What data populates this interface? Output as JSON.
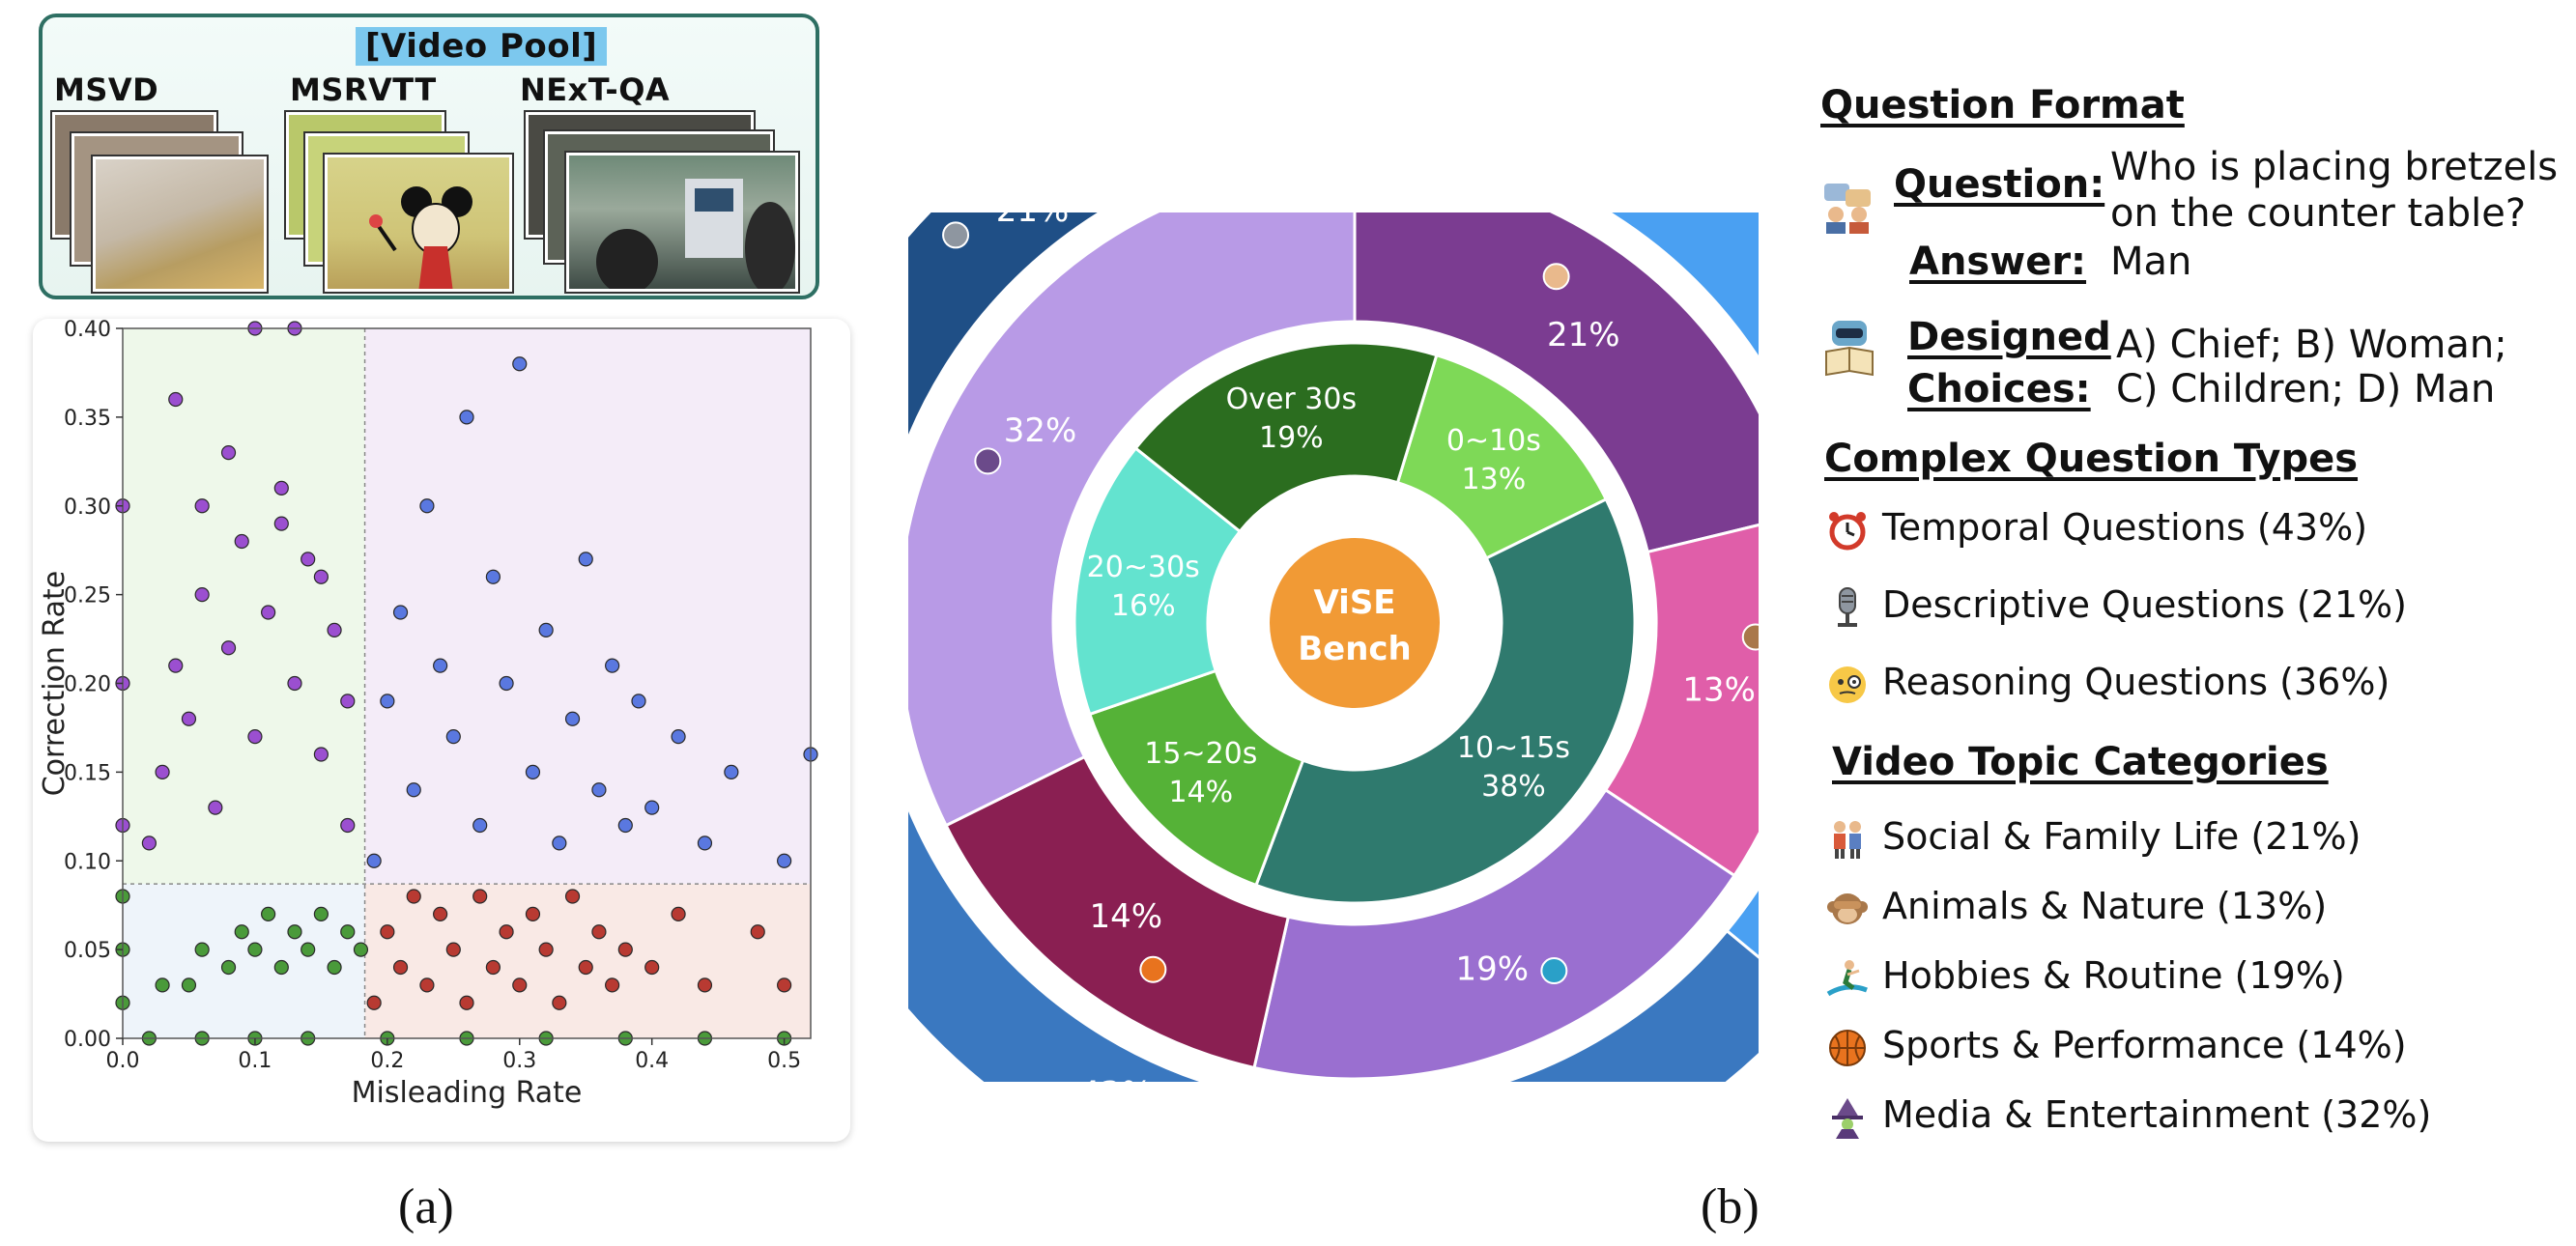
{
  "video_pool": {
    "title": "[Video Pool]",
    "sources": [
      "MSVD",
      "MSRVTT",
      "NExT-QA"
    ]
  },
  "panel_labels": {
    "a": "(a)",
    "b": "(b)"
  },
  "colors": {
    "purple_points": "#9b4fd0",
    "blue_points": "#5a78e0",
    "red_points": "#b83a32",
    "green_points": "#4a9a3a",
    "ring_outer_temporal": "#3a78c0",
    "ring_outer_descriptive": "#1f4f86",
    "ring_outer_reasoning": "#4aa0f2",
    "center": "#f19a35"
  },
  "chart_data": [
    {
      "type": "scatter",
      "xlabel": "Misleading Rate",
      "ylabel": "Correction Rate",
      "xlim": [
        0.0,
        0.52
      ],
      "ylim": [
        0.0,
        0.4
      ],
      "xticks": [
        "0.0",
        "0.1",
        "0.2",
        "0.3",
        "0.4",
        "0.5"
      ],
      "yticks": [
        "0.00",
        "0.05",
        "0.10",
        "0.15",
        "0.20",
        "0.25",
        "0.30",
        "0.35",
        "0.40"
      ],
      "thresholds": {
        "x": 0.183,
        "y": 0.087
      },
      "grid": false,
      "series": [
        {
          "color": "purple",
          "region": "low misleading, high correction",
          "values": [
            [
              0.02,
              0.11
            ],
            [
              0.03,
              0.15
            ],
            [
              0.04,
              0.21
            ],
            [
              0.05,
              0.18
            ],
            [
              0.06,
              0.25
            ],
            [
              0.07,
              0.13
            ],
            [
              0.08,
              0.22
            ],
            [
              0.09,
              0.28
            ],
            [
              0.1,
              0.17
            ],
            [
              0.11,
              0.24
            ],
            [
              0.12,
              0.31
            ],
            [
              0.13,
              0.2
            ],
            [
              0.14,
              0.27
            ],
            [
              0.15,
              0.16
            ],
            [
              0.16,
              0.23
            ],
            [
              0.17,
              0.12
            ],
            [
              0.1,
              0.4
            ],
            [
              0.13,
              0.4
            ],
            [
              0.04,
              0.36
            ],
            [
              0.06,
              0.3
            ],
            [
              0.08,
              0.33
            ],
            [
              0.12,
              0.29
            ],
            [
              0.15,
              0.26
            ],
            [
              0.17,
              0.19
            ],
            [
              0.0,
              0.3
            ],
            [
              0.0,
              0.2
            ],
            [
              0.0,
              0.12
            ]
          ]
        },
        {
          "color": "blue",
          "region": "high misleading, high correction",
          "values": [
            [
              0.19,
              0.1
            ],
            [
              0.2,
              0.19
            ],
            [
              0.21,
              0.24
            ],
            [
              0.22,
              0.14
            ],
            [
              0.23,
              0.3
            ],
            [
              0.24,
              0.21
            ],
            [
              0.25,
              0.17
            ],
            [
              0.26,
              0.35
            ],
            [
              0.27,
              0.12
            ],
            [
              0.28,
              0.26
            ],
            [
              0.29,
              0.2
            ],
            [
              0.3,
              0.38
            ],
            [
              0.31,
              0.15
            ],
            [
              0.32,
              0.23
            ],
            [
              0.33,
              0.11
            ],
            [
              0.34,
              0.18
            ],
            [
              0.35,
              0.27
            ],
            [
              0.36,
              0.14
            ],
            [
              0.37,
              0.21
            ],
            [
              0.38,
              0.12
            ],
            [
              0.39,
              0.19
            ],
            [
              0.4,
              0.13
            ],
            [
              0.42,
              0.17
            ],
            [
              0.44,
              0.11
            ],
            [
              0.46,
              0.15
            ],
            [
              0.5,
              0.1
            ],
            [
              0.52,
              0.16
            ]
          ]
        },
        {
          "color": "red",
          "region": "high misleading, low correction",
          "values": [
            [
              0.19,
              0.02
            ],
            [
              0.2,
              0.06
            ],
            [
              0.21,
              0.04
            ],
            [
              0.22,
              0.08
            ],
            [
              0.23,
              0.03
            ],
            [
              0.24,
              0.07
            ],
            [
              0.25,
              0.05
            ],
            [
              0.26,
              0.02
            ],
            [
              0.27,
              0.08
            ],
            [
              0.28,
              0.04
            ],
            [
              0.29,
              0.06
            ],
            [
              0.3,
              0.03
            ],
            [
              0.31,
              0.07
            ],
            [
              0.32,
              0.05
            ],
            [
              0.33,
              0.02
            ],
            [
              0.34,
              0.08
            ],
            [
              0.35,
              0.04
            ],
            [
              0.36,
              0.06
            ],
            [
              0.37,
              0.03
            ],
            [
              0.38,
              0.05
            ],
            [
              0.4,
              0.04
            ],
            [
              0.42,
              0.07
            ],
            [
              0.44,
              0.03
            ],
            [
              0.48,
              0.06
            ],
            [
              0.5,
              0.03
            ]
          ]
        },
        {
          "color": "green",
          "region": "low misleading, low correction",
          "values": [
            [
              0.03,
              0.03
            ],
            [
              0.05,
              0.03
            ],
            [
              0.06,
              0.05
            ],
            [
              0.08,
              0.04
            ],
            [
              0.09,
              0.06
            ],
            [
              0.1,
              0.05
            ],
            [
              0.11,
              0.07
            ],
            [
              0.12,
              0.04
            ],
            [
              0.13,
              0.06
            ],
            [
              0.14,
              0.05
            ],
            [
              0.15,
              0.07
            ],
            [
              0.16,
              0.04
            ],
            [
              0.17,
              0.06
            ],
            [
              0.18,
              0.05
            ],
            [
              0.0,
              0.05
            ],
            [
              0.0,
              0.02
            ],
            [
              0.0,
              0.08
            ],
            [
              0.02,
              0.0
            ],
            [
              0.06,
              0.0
            ],
            [
              0.1,
              0.0
            ],
            [
              0.14,
              0.0
            ],
            [
              0.2,
              0.0
            ],
            [
              0.26,
              0.0
            ],
            [
              0.32,
              0.0
            ],
            [
              0.38,
              0.0
            ],
            [
              0.44,
              0.0
            ],
            [
              0.5,
              0.0
            ]
          ]
        }
      ]
    },
    {
      "type": "pie",
      "subtype": "nested-donut",
      "center_label": [
        "ViSE",
        "Bench"
      ],
      "rings": [
        {
          "name": "duration",
          "slices": [
            {
              "label": "0~10s",
              "value": 13,
              "text": "13%",
              "color": "#7ed957"
            },
            {
              "label": "10~15s",
              "value": 38,
              "text": "38%",
              "color": "#2f7a6e"
            },
            {
              "label": "15~20s",
              "value": 14,
              "text": "14%",
              "color": "#55b237"
            },
            {
              "label": "20~30s",
              "value": 16,
              "text": "16%",
              "color": "#63e3cf"
            },
            {
              "label": "Over 30s",
              "value": 19,
              "text": "19%",
              "color": "#2b6d1f"
            }
          ]
        },
        {
          "name": "topic",
          "slices": [
            {
              "label": "Social & Family Life",
              "value": 21,
              "text": "21%",
              "color": "#7b3c91"
            },
            {
              "label": "Animals & Nature",
              "value": 13,
              "text": "13%",
              "color": "#e05ea9"
            },
            {
              "label": "Hobbies & Routine",
              "value": 19,
              "text": "19%",
              "color": "#9a6fd0"
            },
            {
              "label": "Sports & Performance",
              "value": 14,
              "text": "14%",
              "color": "#8a1f52"
            },
            {
              "label": "Media & Entertainment",
              "value": 32,
              "text": "32%",
              "color": "#b89ae6"
            }
          ]
        },
        {
          "name": "question_type",
          "slices": [
            {
              "label": "Reasoning Questions",
              "value": 36,
              "text": "36%",
              "color": "#4aa0f2"
            },
            {
              "label": "Temporal Questions",
              "value": 43,
              "text": "43%",
              "color": "#3a78c0"
            },
            {
              "label": "Descriptive Questions",
              "value": 21,
              "text": "21%",
              "color": "#1f4f86"
            }
          ]
        }
      ]
    }
  ],
  "legend": {
    "question_format": {
      "heading": "Question Format",
      "question_label": "Question:",
      "question_text": [
        "Who is placing bretzels",
        "on the counter table?"
      ],
      "answer_label": "Answer:",
      "answer_text": "Man",
      "choices_label": [
        "Designed",
        "Choices:"
      ],
      "choices_text": [
        "A) Chief; B) Woman;",
        "C) Children; D) Man"
      ]
    },
    "complex_question_types": {
      "heading": "Complex Question Types",
      "items": [
        {
          "text": "Temporal Questions (43%)",
          "icon": "alarm-clock-icon"
        },
        {
          "text": "Descriptive Questions (21%)",
          "icon": "microphone-icon"
        },
        {
          "text": "Reasoning Questions (36%)",
          "icon": "face-with-monocle-icon"
        }
      ]
    },
    "video_topic_categories": {
      "heading": "Video Topic Categories",
      "items": [
        {
          "text": "Social & Family Life (21%)",
          "icon": "couple-icon"
        },
        {
          "text": "Animals & Nature (13%)",
          "icon": "see-no-evil-monkey-icon"
        },
        {
          "text": "Hobbies & Routine (19%)",
          "icon": "surfer-icon"
        },
        {
          "text": "Sports & Performance (14%)",
          "icon": "basketball-icon"
        },
        {
          "text": "Media &  Entertainment (32%)",
          "icon": "mage-icon"
        }
      ]
    }
  }
}
